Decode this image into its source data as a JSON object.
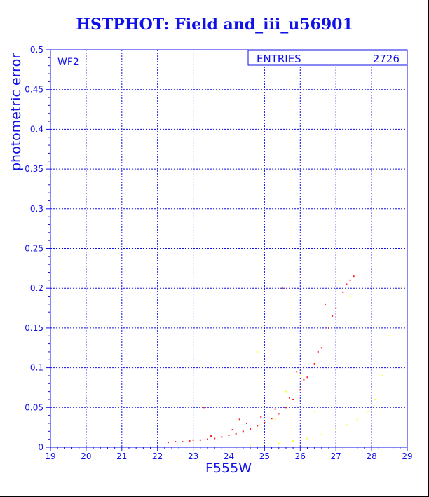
{
  "chart_data": {
    "type": "scatter",
    "title": "HSTPHOT: Field and_iii_u56901",
    "xlabel": "F555W",
    "ylabel": "photometric error",
    "xlim": [
      19,
      29
    ],
    "ylim": [
      0,
      0.5
    ],
    "xticks": [
      "19",
      "20",
      "21",
      "22",
      "23",
      "24",
      "25",
      "26",
      "27",
      "28",
      "29"
    ],
    "yticks": [
      "0",
      "0.05",
      "0.1",
      "0.15",
      "0.2",
      "0.25",
      "0.3",
      "0.35",
      "0.4",
      "0.45",
      "0.5"
    ],
    "grid": true,
    "panel_label": "WF2",
    "stats_box": {
      "label": "ENTRIES",
      "value": "2726"
    },
    "colors": {
      "axis": "#1010e8",
      "grid": "#1010e8",
      "series_main": "#ff1a1a",
      "series_faint": "#ffff33"
    },
    "series": [
      {
        "color": "#ff1a1a",
        "points": [
          [
            22.3,
            0.006
          ],
          [
            22.5,
            0.007
          ],
          [
            22.7,
            0.007
          ],
          [
            22.9,
            0.008
          ],
          [
            23.0,
            0.009
          ],
          [
            23.2,
            0.009
          ],
          [
            23.4,
            0.01
          ],
          [
            23.6,
            0.011
          ],
          [
            23.8,
            0.013
          ],
          [
            24.0,
            0.015
          ],
          [
            24.2,
            0.017
          ],
          [
            24.4,
            0.02
          ],
          [
            24.6,
            0.023
          ],
          [
            24.8,
            0.027
          ],
          [
            25.0,
            0.031
          ],
          [
            25.2,
            0.036
          ],
          [
            25.4,
            0.042
          ],
          [
            25.6,
            0.05
          ],
          [
            25.8,
            0.06
          ],
          [
            26.0,
            0.072
          ],
          [
            26.2,
            0.088
          ],
          [
            26.4,
            0.105
          ],
          [
            26.6,
            0.125
          ],
          [
            26.8,
            0.15
          ],
          [
            27.0,
            0.175
          ],
          [
            27.2,
            0.195
          ],
          [
            27.4,
            0.21
          ],
          [
            27.5,
            0.215
          ],
          [
            23.5,
            0.014
          ],
          [
            24.1,
            0.022
          ],
          [
            24.5,
            0.03
          ],
          [
            24.9,
            0.038
          ],
          [
            25.3,
            0.048
          ],
          [
            25.7,
            0.062
          ],
          [
            26.1,
            0.085
          ],
          [
            26.5,
            0.12
          ],
          [
            26.9,
            0.165
          ],
          [
            27.3,
            0.205
          ],
          [
            25.5,
            0.2
          ],
          [
            23.3,
            0.05
          ],
          [
            24.3,
            0.035
          ],
          [
            25.9,
            0.095
          ],
          [
            26.7,
            0.18
          ]
        ]
      },
      {
        "color": "#ffff33",
        "points": [
          [
            24.6,
            0.003
          ],
          [
            25.0,
            0.004
          ],
          [
            25.4,
            0.005
          ],
          [
            25.8,
            0.008
          ],
          [
            26.2,
            0.011
          ],
          [
            26.6,
            0.016
          ],
          [
            27.0,
            0.022
          ],
          [
            27.3,
            0.028
          ],
          [
            27.6,
            0.035
          ],
          [
            27.9,
            0.045
          ],
          [
            28.1,
            0.06
          ],
          [
            28.3,
            0.09
          ],
          [
            28.5,
            0.14
          ],
          [
            28.8,
            0.2
          ],
          [
            24.8,
            0.12
          ],
          [
            25.6,
            0.07
          ],
          [
            26.0,
            0.09
          ],
          [
            27.1,
            0.21
          ],
          [
            27.4,
            0.19
          ],
          [
            25.3,
            0.035
          ],
          [
            26.4,
            0.045
          ]
        ]
      }
    ]
  }
}
